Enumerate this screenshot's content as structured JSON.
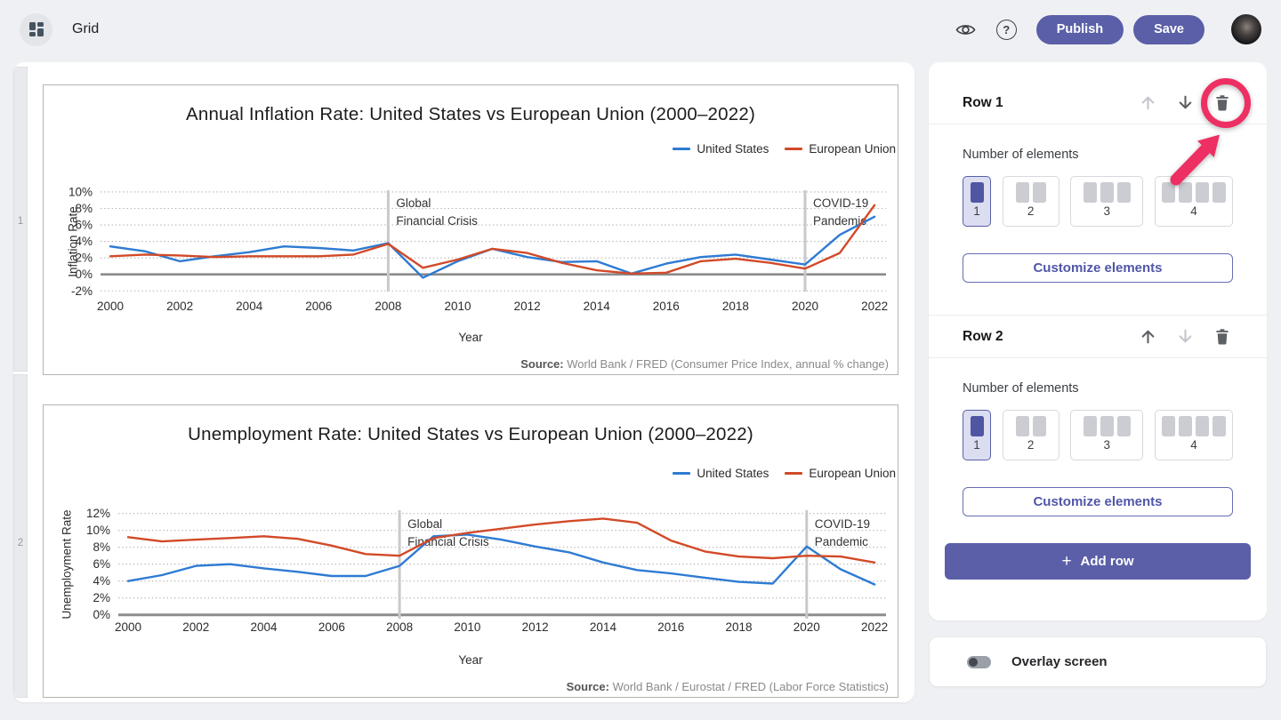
{
  "topbar": {
    "title": "Grid",
    "help_icon": "?",
    "publish": "Publish",
    "save": "Save"
  },
  "colors": {
    "accent_purple": "#5a5fa8",
    "annotation_pink": "#ee2f63",
    "series_blue": "#2e7bd2",
    "series_red": "#d14a28"
  },
  "gutter": {
    "rows": [
      "1",
      "2"
    ]
  },
  "chart_data": [
    {
      "type": "line",
      "title": "Annual Inflation Rate: United States vs European Union (2000–2022)",
      "xlabel": "Year",
      "ylabel": "Inflation Rate",
      "x": [
        2000,
        2001,
        2002,
        2003,
        2004,
        2005,
        2006,
        2007,
        2008,
        2009,
        2010,
        2011,
        2012,
        2013,
        2014,
        2015,
        2016,
        2017,
        2018,
        2019,
        2020,
        2021,
        2022
      ],
      "xticks": [
        2000,
        2002,
        2004,
        2006,
        2008,
        2010,
        2012,
        2014,
        2016,
        2018,
        2020,
        2022
      ],
      "yticks": [
        10,
        8,
        6,
        4,
        2,
        0,
        -2
      ],
      "ytick_suffix": "%",
      "ylim": [
        -2.8,
        10.8
      ],
      "grid": true,
      "legend_position": "top-right",
      "series": [
        {
          "name": "United States",
          "color": "#2e7bd2",
          "values": [
            3.4,
            2.8,
            1.6,
            2.2,
            2.7,
            3.4,
            3.2,
            2.9,
            3.8,
            -0.4,
            1.6,
            3.1,
            2.1,
            1.5,
            1.6,
            0.1,
            1.3,
            2.1,
            2.4,
            1.8,
            1.2,
            4.8,
            7.0
          ]
        },
        {
          "name": "European Union",
          "color": "#d14a28",
          "values": [
            2.2,
            2.4,
            2.3,
            2.1,
            2.2,
            2.2,
            2.2,
            2.4,
            3.7,
            0.8,
            1.8,
            3.1,
            2.6,
            1.4,
            0.5,
            0.1,
            0.2,
            1.6,
            1.9,
            1.4,
            0.7,
            2.6,
            8.4
          ]
        }
      ],
      "annotations": [
        {
          "x": 2008,
          "lines": [
            "Global",
            "Financial Crisis"
          ]
        },
        {
          "x": 2020,
          "lines": [
            "COVID-19",
            "Pandemic"
          ]
        }
      ],
      "source_label": "Source:",
      "source_text": " World Bank / FRED (Consumer Price Index, annual % change)"
    },
    {
      "type": "line",
      "title": "Unemployment Rate: United States vs European Union (2000–2022)",
      "xlabel": "Year",
      "ylabel": "Unemployment Rate",
      "x": [
        2000,
        2001,
        2002,
        2003,
        2004,
        2005,
        2006,
        2007,
        2008,
        2009,
        2010,
        2011,
        2012,
        2013,
        2014,
        2015,
        2016,
        2017,
        2018,
        2019,
        2020,
        2021,
        2022
      ],
      "xticks": [
        2000,
        2002,
        2004,
        2006,
        2008,
        2010,
        2012,
        2014,
        2016,
        2018,
        2020,
        2022
      ],
      "yticks": [
        12,
        10,
        8,
        6,
        4,
        2,
        0
      ],
      "ytick_suffix": "%",
      "ylim": [
        0,
        12.8
      ],
      "grid": true,
      "legend_position": "top-right",
      "series": [
        {
          "name": "United States",
          "color": "#2e7bd2",
          "values": [
            4.0,
            4.7,
            5.8,
            6.0,
            5.5,
            5.1,
            4.6,
            4.6,
            5.8,
            9.3,
            9.5,
            8.9,
            8.1,
            7.4,
            6.2,
            5.3,
            4.9,
            4.4,
            3.9,
            3.7,
            8.1,
            5.4,
            3.6
          ]
        },
        {
          "name": "European Union",
          "color": "#d14a28",
          "values": [
            9.2,
            8.7,
            8.9,
            9.1,
            9.3,
            9.0,
            8.2,
            7.2,
            7.0,
            9.1,
            9.7,
            10.2,
            10.7,
            11.1,
            11.4,
            10.9,
            8.8,
            7.5,
            6.9,
            6.7,
            7.0,
            6.9,
            6.2
          ]
        }
      ],
      "annotations": [
        {
          "x": 2008,
          "lines": [
            "Global",
            "Financial Crisis"
          ]
        },
        {
          "x": 2020,
          "lines": [
            "COVID-19",
            "Pandemic"
          ]
        }
      ],
      "source_label": "Source:",
      "source_text": " World Bank / Eurostat / FRED (Labor Force Statistics)"
    }
  ],
  "panel": {
    "rows": [
      {
        "title": "Row 1",
        "elements_label": "Number of elements",
        "options": [
          {
            "count": 1,
            "selected": true
          },
          {
            "count": 2,
            "selected": false
          },
          {
            "count": 3,
            "selected": false
          },
          {
            "count": 4,
            "selected": false
          }
        ],
        "customize_label": "Customize elements",
        "move_up_enabled": false,
        "move_down_enabled": true
      },
      {
        "title": "Row 2",
        "elements_label": "Number of elements",
        "options": [
          {
            "count": 1,
            "selected": true
          },
          {
            "count": 2,
            "selected": false
          },
          {
            "count": 3,
            "selected": false
          },
          {
            "count": 4,
            "selected": false
          }
        ],
        "customize_label": "Customize elements",
        "move_up_enabled": true,
        "move_down_enabled": false
      }
    ],
    "add_row_icon": "+",
    "add_row_label": "Add row",
    "overlay": {
      "label": "Overlay screen",
      "enabled": false
    }
  },
  "annotation": {
    "color": "#ee2f63",
    "shapes": [
      "circle",
      "arrow"
    ],
    "target": "row-1-delete-button"
  }
}
